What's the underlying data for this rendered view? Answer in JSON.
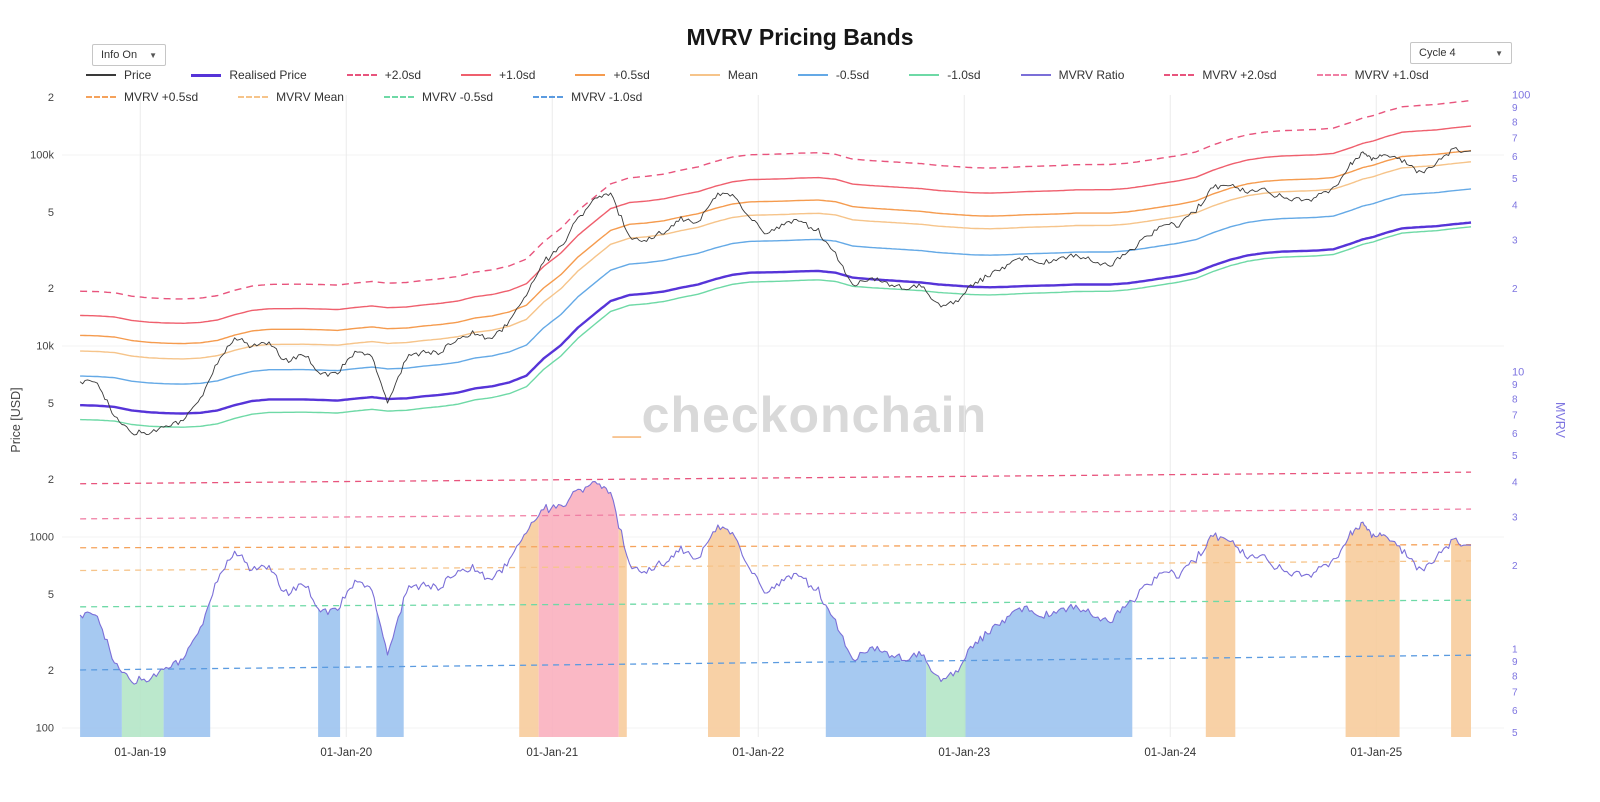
{
  "header": {
    "title": "MVRV Pricing Bands"
  },
  "controls": {
    "info_label": "Info On",
    "cycle_label": "Cycle 4",
    "caret": "▼"
  },
  "watermark": {
    "prefix": "_",
    "text": "checkonchain"
  },
  "axes": {
    "y_left_title": "Price [USD]",
    "y_right_title": "MVRV",
    "x_ticks": [
      "01-Jan-19",
      "01-Jan-20",
      "01-Jan-21",
      "01-Jan-22",
      "01-Jan-23",
      "01-Jan-24",
      "01-Jan-25"
    ],
    "x_tick_years": [
      2019,
      2020,
      2021,
      2022,
      2023,
      2024,
      2025
    ],
    "y_left_ticks": [
      {
        "v": 200000,
        "label": "2"
      },
      {
        "v": 100000,
        "label": "100k"
      },
      {
        "v": 50000,
        "label": "5"
      },
      {
        "v": 20000,
        "label": "2"
      },
      {
        "v": 10000,
        "label": "10k"
      },
      {
        "v": 5000,
        "label": "5"
      },
      {
        "v": 2000,
        "label": "2"
      },
      {
        "v": 1000,
        "label": "1000"
      },
      {
        "v": 500,
        "label": "5"
      },
      {
        "v": 200,
        "label": "2"
      },
      {
        "v": 100,
        "label": "100"
      }
    ],
    "y_right_ticks": [
      {
        "v": 100,
        "label": "100"
      },
      {
        "v": 90,
        "label": "9"
      },
      {
        "v": 80,
        "label": "8"
      },
      {
        "v": 70,
        "label": "7"
      },
      {
        "v": 60,
        "label": "6"
      },
      {
        "v": 50,
        "label": "5"
      },
      {
        "v": 40,
        "label": "4"
      },
      {
        "v": 30,
        "label": "3"
      },
      {
        "v": 20,
        "label": "2"
      },
      {
        "v": 10,
        "label": "10"
      },
      {
        "v": 9,
        "label": "9"
      },
      {
        "v": 8,
        "label": "8"
      },
      {
        "v": 7,
        "label": "7"
      },
      {
        "v": 6,
        "label": "6"
      },
      {
        "v": 5,
        "label": "5"
      },
      {
        "v": 4,
        "label": "4"
      },
      {
        "v": 3,
        "label": "3"
      },
      {
        "v": 2,
        "label": "2"
      },
      {
        "v": 1,
        "label": "1"
      },
      {
        "v": 0.9,
        "label": "9"
      },
      {
        "v": 0.8,
        "label": "8"
      },
      {
        "v": 0.7,
        "label": "7"
      },
      {
        "v": 0.6,
        "label": "6"
      },
      {
        "v": 0.5,
        "label": "5"
      }
    ]
  },
  "legend": [
    {
      "label": "Price",
      "color": "#3a3a3a",
      "dash": false,
      "width": 2
    },
    {
      "label": "Realised Price",
      "color": "#5634d8",
      "dash": false,
      "width": 3
    },
    {
      "label": "+2.0sd",
      "color": "#e8547d",
      "dash": true,
      "width": 2
    },
    {
      "label": "+1.0sd",
      "color": "#ef5f6d",
      "dash": false,
      "width": 2
    },
    {
      "label": "+0.5sd",
      "color": "#f59b4e",
      "dash": false,
      "width": 2
    },
    {
      "label": "Mean",
      "color": "#f6c48a",
      "dash": false,
      "width": 2
    },
    {
      "label": "-0.5sd",
      "color": "#64a9e6",
      "dash": false,
      "width": 2
    },
    {
      "label": "-1.0sd",
      "color": "#6ed9a6",
      "dash": false,
      "width": 2
    },
    {
      "label": "MVRV Ratio",
      "color": "#7b6fd8",
      "dash": false,
      "width": 2
    },
    {
      "label": "MVRV +2.0sd",
      "color": "#e8547d",
      "dash": true,
      "width": 2
    },
    {
      "label": "MVRV +1.0sd",
      "color": "#f07fa4",
      "dash": true,
      "width": 2
    },
    {
      "label": "MVRV +0.5sd",
      "color": "#f5a25b",
      "dash": true,
      "width": 2
    },
    {
      "label": "MVRV Mean",
      "color": "#f6c48a",
      "dash": true,
      "width": 2
    },
    {
      "label": "MVRV -0.5sd",
      "color": "#6ed9a6",
      "dash": true,
      "width": 2
    },
    {
      "label": "MVRV -1.0sd",
      "color": "#5b9be0",
      "dash": true,
      "width": 2
    }
  ],
  "chart_data": {
    "type": "line",
    "title": "MVRV Pricing Bands",
    "x_axis": "date (decimal years, log-time not used)",
    "x_domain": [
      2018.62,
      2025.62
    ],
    "price_axis_range_usd": [
      100,
      251000
    ],
    "mvrv_axis_range": [
      0.5,
      105
    ],
    "scale": "log-log (left: Price USD, right: MVRV)",
    "mvrv_ratio_derivation": "mvrv = price / realised_price; pricing bands = realised_price × band multiplier",
    "colors": {
      "price": "#3a3a3a",
      "realised_price": "#5634d8",
      "mvrv_ratio": "#7b6fd8",
      "mvrv_axis": "#7d74e0"
    },
    "fill_colors": {
      "green": "#b4e5c6",
      "blue": "#9cc3ef",
      "orange": "#f7cc9c",
      "pink": "#f9b0bf"
    },
    "fill_rules": {
      "green": "mvrv below MVRV -1.0sd",
      "blue": "mvrv below MVRV -0.5sd",
      "orange": "mvrv above MVRV +0.5sd",
      "pink": "mvrv above MVRV +1.0sd"
    },
    "bands": [
      {
        "key": "plus2sd",
        "label": "+2.0sd",
        "mult_start": 3.95,
        "mult_end": 4.35,
        "color": "#e8547d",
        "mvrv_color": "#e8547d",
        "dash": true
      },
      {
        "key": "plus1sd",
        "label": "+1.0sd",
        "mult_start": 2.95,
        "mult_end": 3.2,
        "color": "#ef5f6d",
        "mvrv_color": "#f07fa4",
        "dash": false
      },
      {
        "key": "plus05sd",
        "label": "+0.5sd",
        "mult_start": 2.32,
        "mult_end": 2.38,
        "color": "#f59b4e",
        "mvrv_color": "#f5a25b",
        "dash": false
      },
      {
        "key": "mean",
        "label": "Mean",
        "mult_start": 1.92,
        "mult_end": 2.08,
        "color": "#f6c48a",
        "mvrv_color": "#f6c48a",
        "dash": false
      },
      {
        "key": "minus05sd",
        "label": "-0.5sd",
        "mult_start": 1.42,
        "mult_end": 1.5,
        "color": "#64a9e6",
        "mvrv_color": "#6ed9a6",
        "dash": false
      },
      {
        "key": "minus1sd",
        "label": "-1.0sd",
        "mult_start": 0.84,
        "mult_end": 0.95,
        "color": "#6ed9a6",
        "mvrv_color": "#5b9be0",
        "dash": false
      }
    ],
    "x": [
      2018.708,
      2018.792,
      2018.875,
      2018.958,
      2019.042,
      2019.125,
      2019.208,
      2019.292,
      2019.375,
      2019.458,
      2019.542,
      2019.625,
      2019.708,
      2019.792,
      2019.875,
      2019.958,
      2020.042,
      2020.125,
      2020.2,
      2020.292,
      2020.375,
      2020.458,
      2020.542,
      2020.625,
      2020.708,
      2020.792,
      2020.875,
      2020.958,
      2021.042,
      2021.125,
      2021.208,
      2021.283,
      2021.375,
      2021.458,
      2021.542,
      2021.625,
      2021.708,
      2021.792,
      2021.875,
      2021.958,
      2022.042,
      2022.125,
      2022.208,
      2022.292,
      2022.375,
      2022.458,
      2022.542,
      2022.625,
      2022.708,
      2022.792,
      2022.875,
      2022.958,
      2023.042,
      2023.125,
      2023.208,
      2023.292,
      2023.375,
      2023.458,
      2023.542,
      2023.625,
      2023.708,
      2023.792,
      2023.875,
      2023.958,
      2024.042,
      2024.125,
      2024.208,
      2024.292,
      2024.375,
      2024.458,
      2024.542,
      2024.625,
      2024.708,
      2024.792,
      2024.875,
      2024.935,
      2024.985,
      2025.042,
      2025.125,
      2025.208,
      2025.292,
      2025.375,
      2025.46
    ],
    "price": [
      6500,
      6450,
      4250,
      3500,
      3500,
      3850,
      4050,
      5300,
      8200,
      10900,
      10100,
      10300,
      8300,
      9150,
      7150,
      7200,
      9350,
      8900,
      5100,
      8650,
      9450,
      9140,
      11000,
      11650,
      10780,
      13500,
      18700,
      27500,
      33100,
      47000,
      58800,
      62500,
      37300,
      35500,
      40000,
      46300,
      43800,
      61300,
      63000,
      46900,
      38500,
      43200,
      45500,
      39700,
      30100,
      20800,
      22300,
      21500,
      19800,
      20500,
      16500,
      16800,
      21000,
      23500,
      26500,
      29300,
      27200,
      28500,
      30000,
      27500,
      26300,
      30500,
      36400,
      43000,
      42600,
      51500,
      68500,
      69000,
      64000,
      66000,
      60000,
      58000,
      60000,
      66500,
      90000,
      104000,
      95000,
      101000,
      95000,
      80000,
      92000,
      106000,
      105000
    ],
    "realised_price": [
      4900,
      4870,
      4800,
      4600,
      4500,
      4450,
      4430,
      4470,
      4600,
      4900,
      5150,
      5250,
      5250,
      5250,
      5220,
      5180,
      5300,
      5400,
      5280,
      5320,
      5450,
      5550,
      5700,
      6000,
      6150,
      6450,
      7000,
      8600,
      10100,
      12500,
      14800,
      17200,
      18500,
      18800,
      19300,
      20200,
      21000,
      22400,
      23600,
      24200,
      24300,
      24400,
      24600,
      24700,
      24200,
      22800,
      22400,
      22100,
      21800,
      21500,
      21000,
      20700,
      20400,
      20300,
      20400,
      20600,
      20700,
      20800,
      21000,
      21000,
      21000,
      21300,
      21900,
      22600,
      23300,
      24300,
      26400,
      28300,
      29800,
      30700,
      31200,
      31400,
      31600,
      32100,
      34300,
      36200,
      37200,
      39000,
      41300,
      41900,
      42400,
      43400,
      44300
    ]
  }
}
